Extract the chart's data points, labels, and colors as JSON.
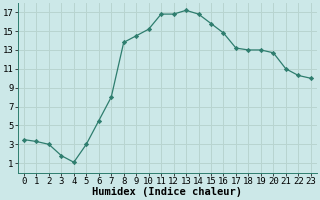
{
  "x": [
    0,
    1,
    2,
    3,
    4,
    5,
    6,
    7,
    8,
    9,
    10,
    11,
    12,
    13,
    14,
    15,
    16,
    17,
    18,
    19,
    20,
    21,
    22,
    23
  ],
  "y": [
    3.5,
    3.3,
    3.0,
    1.8,
    1.1,
    3.0,
    5.5,
    8.0,
    13.8,
    14.5,
    15.2,
    16.8,
    16.8,
    17.2,
    16.8,
    15.8,
    14.8,
    13.2,
    13.0,
    13.0,
    12.7,
    11.0,
    10.3,
    10.0
  ],
  "line_color": "#2e7d6e",
  "marker": "D",
  "marker_size": 2.2,
  "bg_color": "#cce8e8",
  "grid_color": "#b8d4d0",
  "xlabel": "Humidex (Indice chaleur)",
  "xlim": [
    -0.5,
    23.5
  ],
  "ylim": [
    0,
    18
  ],
  "xticks": [
    0,
    1,
    2,
    3,
    4,
    5,
    6,
    7,
    8,
    9,
    10,
    11,
    12,
    13,
    14,
    15,
    16,
    17,
    18,
    19,
    20,
    21,
    22,
    23
  ],
  "yticks": [
    1,
    3,
    5,
    7,
    9,
    11,
    13,
    15,
    17
  ],
  "tick_fontsize": 6.5,
  "xlabel_fontsize": 7.5
}
